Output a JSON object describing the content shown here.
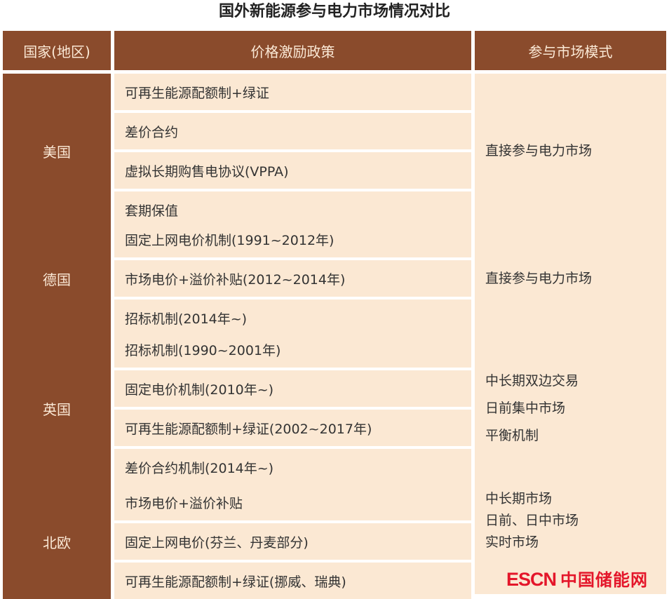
{
  "title": "国外新能源参与电力市场情况对比",
  "headers": [
    "国家(地区)",
    "价格激励政策",
    "参与市场模式"
  ],
  "rows": [
    {
      "country": "美国",
      "policies": [
        "可再生能源配额制+绿证",
        "差价合约",
        "虚拟长期购售电协议(VPPA)",
        "套期保值"
      ],
      "modes": [
        "直接参与电力市场"
      ]
    },
    {
      "country": "德国",
      "policies": [
        "固定上网电价机制(1991~2012年)",
        "市场电价+溢价补贴(2012~2014年)",
        "招标机制(2014年~)"
      ],
      "modes": [
        "直接参与电力市场"
      ]
    },
    {
      "country": "英国",
      "policies": [
        "招标机制(1990~2001年)",
        "固定电价机制(2010年~)",
        "可再生能源配额制+绿证(2002~2017年)",
        "差价合约机制(2014年~)"
      ],
      "modes": [
        "中长期双边交易",
        "日前集中市场",
        "平衡机制"
      ]
    },
    {
      "country": "北欧",
      "policies": [
        "市场电价+溢价补贴",
        "固定上网电价(芬兰、丹麦部分)",
        "可再生能源配额制+绿证(挪威、瑞典)"
      ],
      "modes": [
        "中长期市场",
        "日前、日中市场",
        "实时市场"
      ]
    }
  ],
  "watermark": {
    "latin": "ESCN",
    "chinese": "中国储能网",
    "color": "#e4162a"
  }
}
